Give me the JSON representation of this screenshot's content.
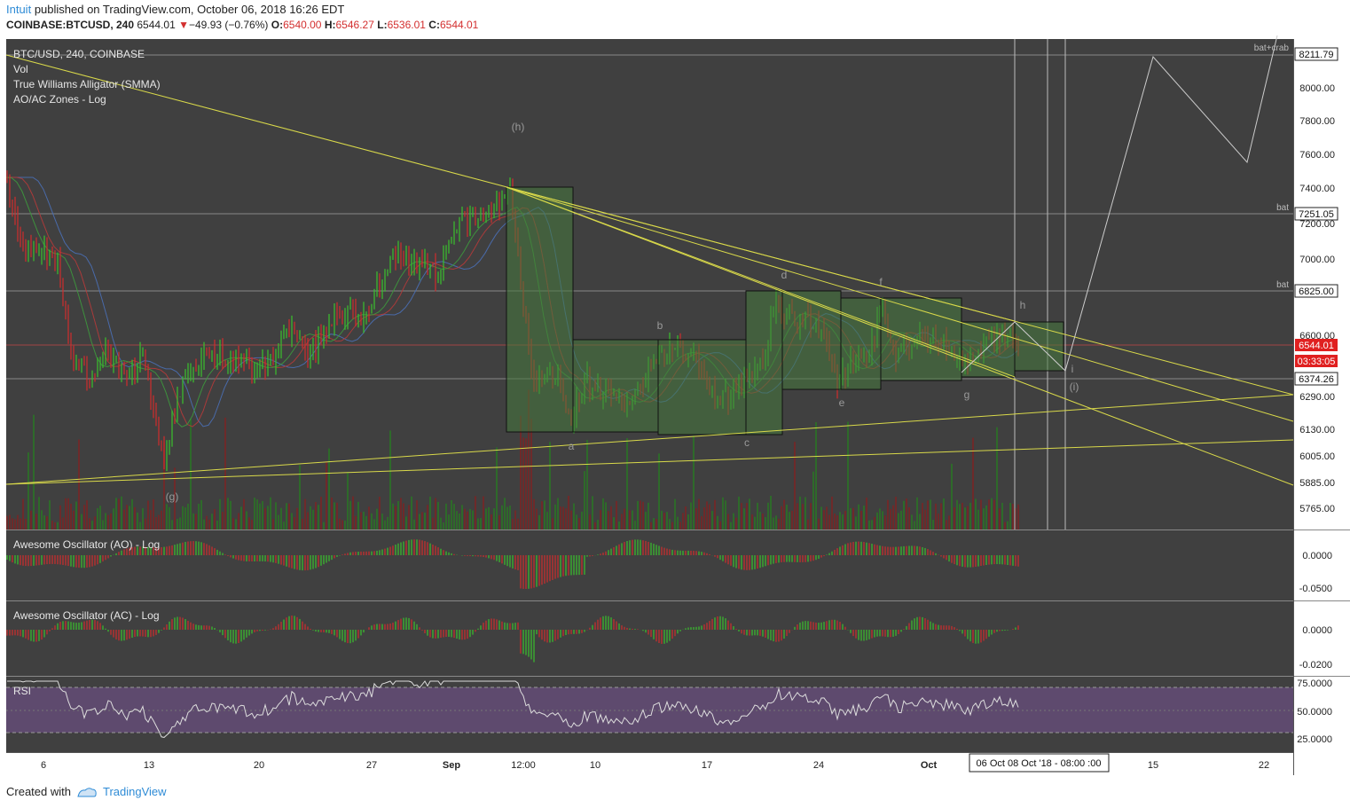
{
  "header": {
    "brand": "Intuit",
    "published": "published on TradingView.com, October 06, 2018 16:26 EDT",
    "symbol": "COINBASE:BTCUSD, 240",
    "last": "6544.01",
    "change": "−49.93 (−0.76%)",
    "o_label": "O:",
    "o": "6540.00",
    "h_label": "H:",
    "h": "6546.27",
    "l_label": "L:",
    "l": "6536.01",
    "c_label": "C:",
    "c": "6544.01"
  },
  "legend": [
    "BTC/USD, 240, COINBASE",
    "Vol",
    "True Williams Alligator (SMMA)",
    "AO/AC Zones - Log"
  ],
  "footer": {
    "created": "Created with",
    "brand": "TradingView"
  },
  "colors": {
    "bg": "#404040",
    "up": "#39c12d",
    "down": "#d12d2d",
    "trend": "#d9d94a",
    "rsi_band": "#5e4a6e",
    "accent": "#2e8bd6"
  },
  "chart_data": {
    "type": "candlestick",
    "main": {
      "y_ticks": [
        "8000.00",
        "7800.00",
        "7600.00",
        "7400.00",
        "7200.00",
        "7000.00",
        "6600.00",
        "6290.00",
        "6130.00",
        "6005.00",
        "5885.00",
        "5765.00"
      ],
      "price_labels": [
        {
          "text": "8211.79",
          "note": "bat+crab",
          "kind": "white"
        },
        {
          "text": "7251.05",
          "note": "bat",
          "kind": "white"
        },
        {
          "text": "6825.00",
          "note": "bat",
          "kind": "white"
        },
        {
          "text": "6544.01",
          "note": "",
          "kind": "red"
        },
        {
          "text": "03:33:05",
          "note": "",
          "kind": "red"
        },
        {
          "text": "6374.26",
          "note": "",
          "kind": "white"
        }
      ],
      "wave_labels": [
        "(h)",
        "a",
        "b",
        "c",
        "d",
        "e",
        "f",
        "g",
        "h",
        "i",
        "(i)",
        "(g)"
      ]
    },
    "panes": [
      {
        "title": "Awesome Oscillator (AO) - Log",
        "ticks": [
          "0.0000",
          "-0.0500"
        ]
      },
      {
        "title": "Awesome Oscillator (AC) - Log",
        "ticks": [
          "0.0000",
          "-0.0200"
        ]
      },
      {
        "title": "RSI",
        "ticks": [
          "75.0000",
          "50.0000",
          "25.0000"
        ]
      }
    ],
    "x_ticks": [
      "6",
      "13",
      "20",
      "27",
      "Sep",
      "12:00",
      "10",
      "17",
      "24",
      "Oct",
      "15",
      "22"
    ],
    "x_tooltip": "06 Oct  08 Oct '18 - 08:00 :00"
  }
}
